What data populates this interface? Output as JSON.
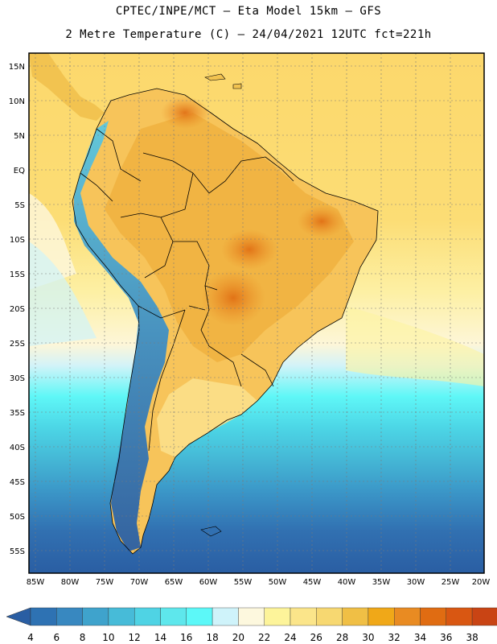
{
  "title_line1": "CPTEC/INPE/MCT –  Eta Model 15km – GFS",
  "title_line2": "2 Metre Temperature (C) – 24/04/2021 12UTC fct=221h",
  "map": {
    "lat_labels": [
      "15N",
      "10N",
      "5N",
      "EQ",
      "5S",
      "10S",
      "15S",
      "20S",
      "25S",
      "30S",
      "35S",
      "40S",
      "45S",
      "50S",
      "55S"
    ],
    "lon_labels": [
      "85W",
      "80W",
      "75W",
      "70W",
      "65W",
      "60W",
      "55W",
      "50W",
      "45W",
      "40W",
      "35W",
      "30W",
      "25W",
      "20W"
    ]
  },
  "colorbar": {
    "labels": [
      "4",
      "6",
      "8",
      "10",
      "12",
      "14",
      "16",
      "18",
      "20",
      "22",
      "24",
      "26",
      "28",
      "30",
      "32",
      "34",
      "36",
      "38"
    ],
    "colors": [
      "#2a5ea3",
      "#2e72b3",
      "#3888c0",
      "#3fa3cc",
      "#47bbd8",
      "#4fd3e4",
      "#5ee7ec",
      "#5cf8f8",
      "#cff3fa",
      "#fdf8de",
      "#fdf49a",
      "#fbe58a",
      "#f7d871",
      "#f0bf45",
      "#f0a818",
      "#e98b22",
      "#e06c12",
      "#d95712",
      "#c94414",
      "#b8360a"
    ]
  }
}
